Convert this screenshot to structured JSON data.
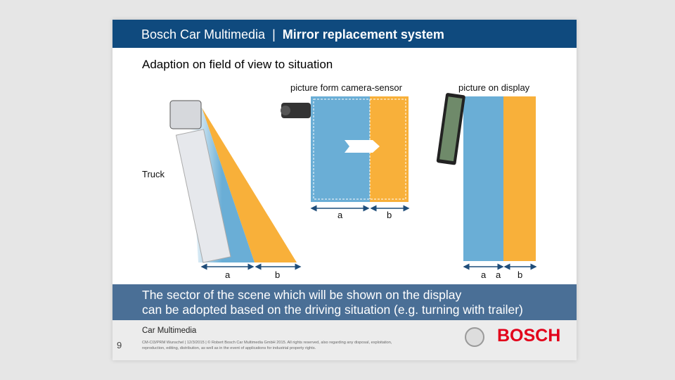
{
  "header": {
    "brand": "Bosch Car Multimedia",
    "separator": "|",
    "title": "Mirror replacement system"
  },
  "subtitle": "Adaption on field of view to situation",
  "labels": {
    "truck": "Truck",
    "camera": "picture form camera-sensor",
    "display": "picture on display"
  },
  "measure": {
    "a": "a",
    "b": "b"
  },
  "band": {
    "line1": "The sector of the scene which will be shown on the display",
    "line2": "can be adopted based on the driving situation (e.g. turning with trailer)"
  },
  "footer": {
    "page": "9",
    "section": "Car Multimedia",
    "legal1": "CM-CI3/PRM Wunschel | 12/3/2015 | © Robert Bosch Car Multimedia GmbH 2015. All rights reserved, also regarding any disposal, exploitation,",
    "legal2": "reproduction, editing, distribution, as well as in the event of applications for industrial property rights.",
    "logo": "BOSCH"
  },
  "colors": {
    "header": "#0f4a7e",
    "blue": "#6aaed6",
    "orange": "#f8b03a",
    "band": "#4a6f96",
    "logo": "#e2001a"
  }
}
